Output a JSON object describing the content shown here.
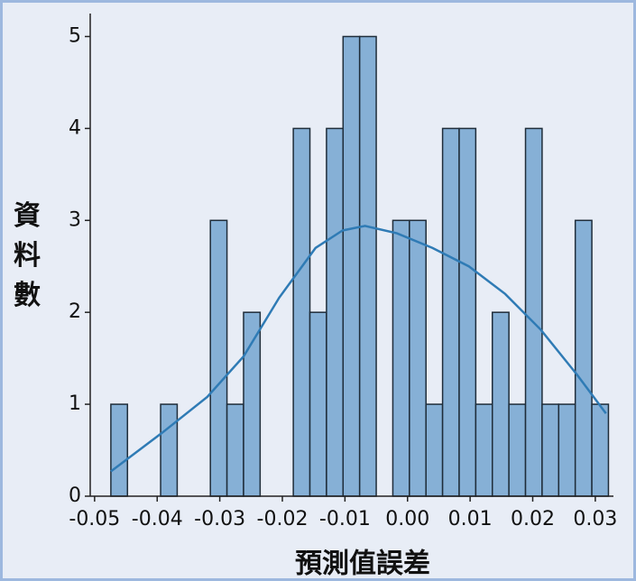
{
  "chart_data": {
    "type": "histogram",
    "xlabel": "預測值誤差",
    "ylabel": "資料數",
    "bins": [
      -0.0474,
      -0.04475,
      -0.0421,
      -0.03945,
      -0.0368,
      -0.03415,
      -0.0315,
      -0.02885,
      -0.0262,
      -0.02355,
      -0.0209,
      -0.01825,
      -0.0156,
      -0.01295,
      -0.0103,
      -0.00765,
      -0.005,
      -0.00235,
      0.0003,
      0.00295,
      0.0056,
      0.00825,
      0.0109,
      0.01355,
      0.0162,
      0.01885,
      0.0215,
      0.02415,
      0.0268,
      0.02945,
      0.0321
    ],
    "values": [
      1,
      0,
      0,
      1,
      0,
      0,
      3,
      1,
      2,
      0,
      0,
      4,
      2,
      4,
      5,
      5,
      0,
      3,
      3,
      1,
      4,
      4,
      1,
      2,
      1,
      4,
      1,
      1,
      3,
      1
    ],
    "color": "#86b0d6",
    "edgecolor": "#1f2d3a",
    "kde": {
      "color": "#2f7bb5",
      "x": [
        -0.0474,
        -0.0392,
        -0.032,
        -0.0262,
        -0.0205,
        -0.0147,
        -0.0104,
        -0.0068,
        -0.0017,
        0.004,
        0.0098,
        0.0156,
        0.0213,
        0.0271,
        0.0317
      ],
      "values": [
        0.27,
        0.69,
        1.08,
        1.52,
        2.16,
        2.7,
        2.89,
        2.94,
        2.86,
        2.7,
        2.5,
        2.2,
        1.81,
        1.32,
        0.9
      ]
    },
    "xlim": [
      -0.0507,
      0.0329
    ],
    "ylim": [
      0,
      5.25
    ],
    "xticks": [
      -0.05,
      -0.04,
      -0.03,
      -0.02,
      -0.01,
      {
        "value": 0,
        "label": "0.00"
      },
      0.01,
      0.02,
      0.03
    ],
    "yticks": [
      0,
      1,
      2,
      3,
      4,
      5
    ]
  }
}
